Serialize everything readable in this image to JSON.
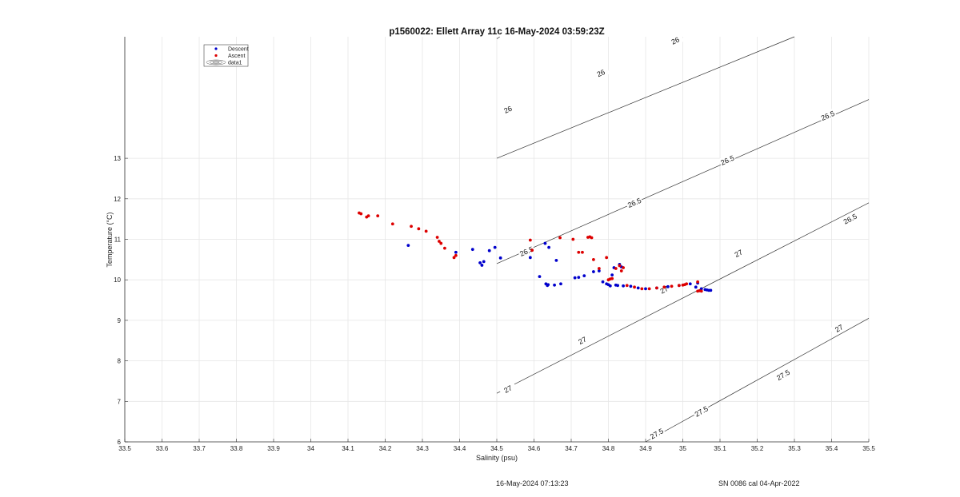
{
  "chart_data": {
    "type": "scatter",
    "title": "p1560022: Ellett Array 11c 16-May-2024 03:59:23Z",
    "xlabel": "Salinity (psu)",
    "ylabel": "Temperature (°C)",
    "xlim": [
      33.5,
      35.5
    ],
    "ylim": [
      6,
      16
    ],
    "xticks": [
      33.5,
      33.6,
      33.7,
      33.8,
      33.9,
      34,
      34.1,
      34.2,
      34.3,
      34.4,
      34.5,
      34.6,
      34.7,
      34.8,
      34.9,
      35,
      35.1,
      35.2,
      35.3,
      35.4,
      35.5
    ],
    "xtick_labels": [
      "33.5",
      "33.6",
      "33.7",
      "33.8",
      "33.9",
      "34",
      "34.1",
      "34.2",
      "34.3",
      "34.4",
      "34.5",
      "34.6",
      "34.7",
      "34.8",
      "34.9",
      "35",
      "35.1",
      "35.2",
      "35.3",
      "35.4",
      "35.5"
    ],
    "yticks": [
      6,
      7,
      8,
      9,
      10,
      11,
      12,
      13
    ],
    "ytick_labels": [
      "6",
      "7",
      "8",
      "9",
      "10",
      "11",
      "12",
      "13"
    ],
    "grid": true,
    "legend_position": "top-left",
    "series": [
      {
        "name": "Descent",
        "color": "#0000cc",
        "x": [
          34.262,
          34.39,
          34.435,
          34.455,
          34.46,
          34.465,
          34.48,
          34.495,
          34.51,
          34.59,
          34.615,
          34.63,
          34.632,
          34.636,
          34.638,
          34.64,
          34.655,
          34.66,
          34.672,
          34.71,
          34.72,
          34.735,
          34.76,
          34.775,
          34.785,
          34.795,
          34.8,
          34.805,
          34.81,
          34.815,
          34.82,
          34.825,
          34.83,
          34.835,
          34.84,
          34.86,
          34.88,
          34.9,
          34.93,
          34.96,
          34.99,
          35.02,
          35.035,
          35.04,
          35.05,
          35.06,
          35.065,
          35.07,
          35.075
        ],
        "y": [
          10.85,
          10.68,
          10.75,
          10.42,
          10.36,
          10.45,
          10.72,
          10.8,
          10.54,
          10.55,
          10.08,
          10.9,
          9.9,
          9.86,
          9.88,
          10.8,
          9.87,
          10.48,
          9.9,
          10.05,
          10.06,
          10.1,
          10.2,
          10.22,
          9.95,
          9.9,
          9.88,
          9.85,
          10.12,
          10.3,
          9.87,
          9.86,
          10.38,
          10.32,
          9.85,
          9.84,
          9.8,
          9.78,
          9.8,
          9.83,
          9.86,
          9.9,
          9.82,
          9.92,
          9.78,
          9.76,
          9.75,
          9.74,
          9.74
        ]
      },
      {
        "name": "Ascent",
        "color": "#dd0000",
        "x": [
          34.13,
          34.135,
          34.15,
          34.155,
          34.18,
          34.22,
          34.27,
          34.29,
          34.31,
          34.34,
          34.345,
          34.35,
          34.36,
          34.385,
          34.39,
          34.59,
          34.595,
          34.67,
          34.705,
          34.72,
          34.73,
          34.745,
          34.75,
          34.755,
          34.76,
          34.775,
          34.795,
          34.8,
          34.805,
          34.81,
          34.82,
          34.83,
          34.835,
          34.84,
          34.85,
          34.87,
          34.89,
          34.91,
          34.93,
          34.95,
          34.97,
          34.99,
          35.0,
          35.005,
          35.01,
          35.04,
          35.045,
          35.05,
          35.04
        ],
        "y": [
          11.65,
          11.63,
          11.55,
          11.58,
          11.58,
          11.38,
          11.32,
          11.26,
          11.2,
          11.05,
          10.95,
          10.9,
          10.78,
          10.55,
          10.6,
          10.98,
          10.73,
          11.04,
          11.0,
          10.68,
          10.68,
          11.05,
          11.06,
          11.04,
          10.5,
          10.28,
          10.55,
          10.0,
          10.02,
          10.03,
          10.28,
          10.35,
          10.22,
          10.3,
          9.86,
          9.82,
          9.78,
          9.78,
          9.8,
          9.82,
          9.84,
          9.86,
          9.87,
          9.88,
          9.9,
          9.95,
          9.73,
          9.72,
          9.72
        ]
      }
    ],
    "contour_labels": [
      "25.5",
      "26",
      "26",
      "26",
      "26",
      "26.5",
      "26.5",
      "26.5",
      "26.5",
      "26.5",
      "27",
      "27",
      "27",
      "27",
      "27",
      "27.5",
      "27.5",
      "27.5"
    ],
    "legend_extra_label": "data1"
  },
  "footer": {
    "left": "16-May-2024 07:13:23",
    "right": "SN 0086 cal 04-Apr-2022"
  }
}
